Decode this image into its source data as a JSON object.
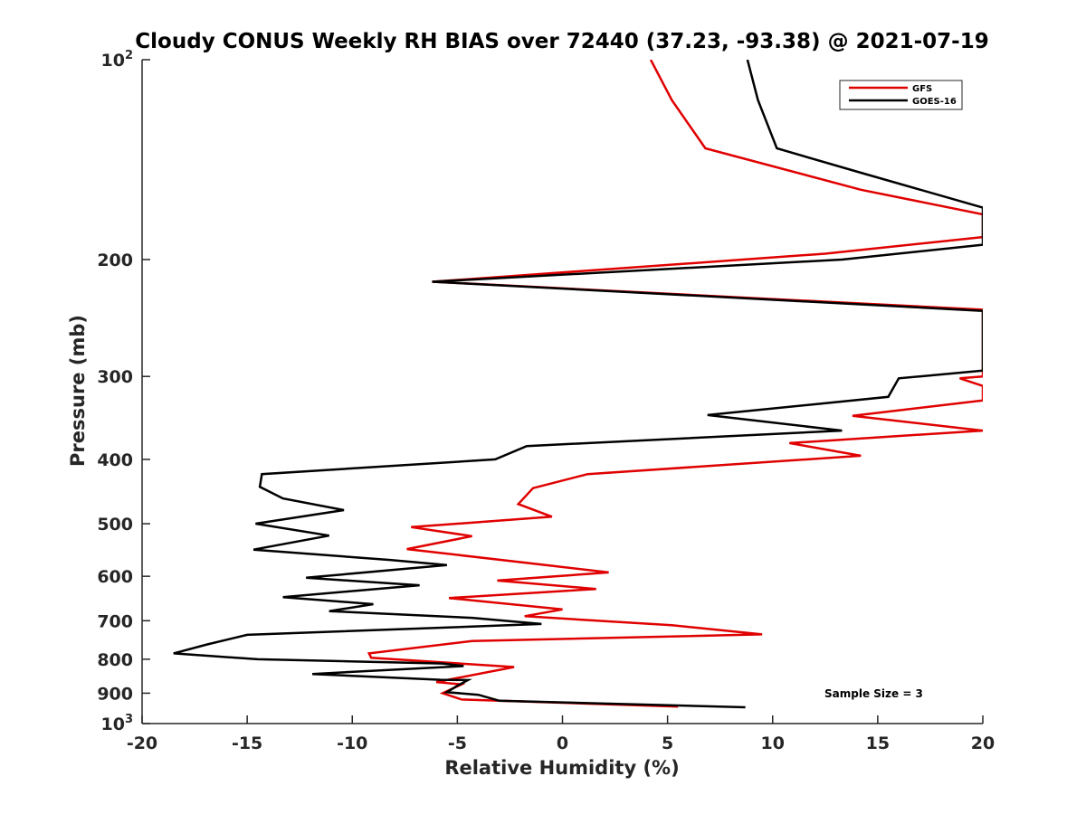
{
  "chart_data": {
    "type": "line",
    "title": "Cloudy CONUS Weekly RH BIAS over 72440 (37.23, -93.38) @ 2021-07-19",
    "xlabel": "Relative Humidity (%)",
    "ylabel": "Pressure (mb)",
    "xlim": [
      -20,
      20
    ],
    "ylim": [
      100,
      1000
    ],
    "y_scale": "log",
    "y_reversed": true,
    "x_ticks": [
      {
        "value": -20,
        "label": "-20"
      },
      {
        "value": -15,
        "label": "-15"
      },
      {
        "value": -10,
        "label": "-10"
      },
      {
        "value": -5,
        "label": "-5"
      },
      {
        "value": 0,
        "label": "0"
      },
      {
        "value": 5,
        "label": "5"
      },
      {
        "value": 10,
        "label": "10"
      },
      {
        "value": 15,
        "label": "15"
      },
      {
        "value": 20,
        "label": "20"
      }
    ],
    "y_ticks": [
      {
        "value": 100,
        "base": "10",
        "exp": "2"
      },
      {
        "value": 200,
        "label": "200"
      },
      {
        "value": 300,
        "label": "300"
      },
      {
        "value": 400,
        "label": "400"
      },
      {
        "value": 500,
        "label": "500"
      },
      {
        "value": 600,
        "label": "600"
      },
      {
        "value": 700,
        "label": "700"
      },
      {
        "value": 800,
        "label": "800"
      },
      {
        "value": 900,
        "label": "900"
      },
      {
        "value": 1000,
        "base": "10",
        "exp": "3"
      }
    ],
    "grid": false,
    "legend_position": "top-right",
    "annotation": "Sample Size = 3",
    "series": [
      {
        "name": "GFS",
        "color": "#e00000",
        "points": [
          [
            4.2,
            100
          ],
          [
            5.2,
            115
          ],
          [
            6.8,
            136
          ],
          [
            14.2,
            157
          ],
          [
            20.0,
            171
          ],
          [
            20.0,
            185
          ],
          [
            12.5,
            196
          ],
          [
            -6.2,
            216
          ],
          [
            20.0,
            238
          ],
          [
            20.0,
            300
          ],
          [
            18.9,
            302
          ],
          [
            20.0,
            310
          ],
          [
            20.0,
            326
          ],
          [
            13.8,
            344
          ],
          [
            20.0,
            362
          ],
          [
            10.8,
            378
          ],
          [
            14.2,
            395
          ],
          [
            1.2,
            421
          ],
          [
            -1.4,
            442
          ],
          [
            -2.1,
            467
          ],
          [
            -0.5,
            488
          ],
          [
            -7.2,
            506
          ],
          [
            -4.3,
            522
          ],
          [
            -7.4,
            546
          ],
          [
            -0.8,
            577
          ],
          [
            2.2,
            592
          ],
          [
            -3.1,
            609
          ],
          [
            1.6,
            627
          ],
          [
            -5.4,
            647
          ],
          [
            0.0,
            673
          ],
          [
            -1.8,
            689
          ],
          [
            5.2,
            711
          ],
          [
            9.5,
            734
          ],
          [
            -4.3,
            751
          ],
          [
            -9.2,
            784
          ],
          [
            -9.1,
            796
          ],
          [
            -2.3,
            822
          ],
          [
            -6.0,
            866
          ],
          [
            -4.8,
            873
          ],
          [
            -5.7,
            900
          ],
          [
            -4.8,
            920
          ],
          [
            5.5,
            943
          ]
        ]
      },
      {
        "name": "GOES-16",
        "color": "#000000",
        "points": [
          [
            8.8,
            100
          ],
          [
            9.3,
            115
          ],
          [
            10.2,
            136
          ],
          [
            14.2,
            148
          ],
          [
            20.0,
            167
          ],
          [
            20.0,
            190
          ],
          [
            13.3,
            200
          ],
          [
            -6.2,
            216
          ],
          [
            20.0,
            239
          ],
          [
            20.0,
            294
          ],
          [
            16.0,
            302
          ],
          [
            15.5,
            322
          ],
          [
            6.9,
            343
          ],
          [
            13.3,
            362
          ],
          [
            -1.7,
            382
          ],
          [
            -3.2,
            400
          ],
          [
            -14.3,
            421
          ],
          [
            -14.4,
            440
          ],
          [
            -13.3,
            458
          ],
          [
            -10.4,
            477
          ],
          [
            -14.6,
            500
          ],
          [
            -11.1,
            521
          ],
          [
            -14.7,
            547
          ],
          [
            -8.2,
            567
          ],
          [
            -5.5,
            577
          ],
          [
            -12.2,
            603
          ],
          [
            -6.8,
            619
          ],
          [
            -13.3,
            645
          ],
          [
            -9.0,
            661
          ],
          [
            -11.1,
            677
          ],
          [
            -4.3,
            693
          ],
          [
            -1.0,
            708
          ],
          [
            -15.0,
            735
          ],
          [
            -16.9,
            760
          ],
          [
            -18.5,
            784
          ],
          [
            -14.5,
            800
          ],
          [
            -5.7,
            812
          ],
          [
            -4.7,
            819
          ],
          [
            -11.9,
            842
          ],
          [
            -5.8,
            859
          ],
          [
            -4.5,
            860
          ],
          [
            -5.0,
            877
          ],
          [
            -5.5,
            897
          ],
          [
            -4.0,
            905
          ],
          [
            -3.0,
            924
          ],
          [
            8.7,
            945
          ]
        ]
      }
    ]
  }
}
